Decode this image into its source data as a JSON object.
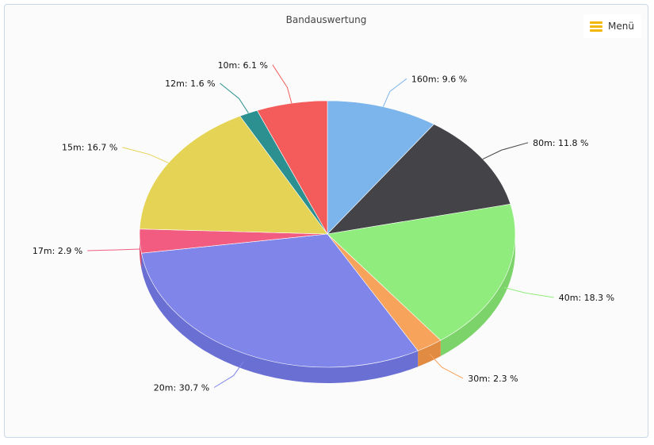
{
  "window": {
    "menu_label": "Menü",
    "menu_icon": "hamburger-icon",
    "menu_icon_color": "#f2b705"
  },
  "chart_data": {
    "type": "pie",
    "title": "Bandauswertung",
    "style": "3d",
    "unit": "%",
    "slices": [
      {
        "label": "160m",
        "value": 9.6,
        "color": "#7cb5ec",
        "side": "#6a9ac9"
      },
      {
        "label": "80m",
        "value": 11.8,
        "color": "#434348",
        "side": "#35353a"
      },
      {
        "label": "40m",
        "value": 18.3,
        "color": "#90ed7d",
        "side": "#7bd36a"
      },
      {
        "label": "30m",
        "value": 2.3,
        "color": "#f7a35c",
        "side": "#e08a42"
      },
      {
        "label": "20m",
        "value": 30.7,
        "color": "#8085e9",
        "side": "#6a6fd4"
      },
      {
        "label": "17m",
        "value": 2.9,
        "color": "#f15c80",
        "side": "#d94668"
      },
      {
        "label": "15m",
        "value": 16.7,
        "color": "#e4d354",
        "side": "#c9b943"
      },
      {
        "label": "12m",
        "value": 1.6,
        "color": "#2b908f",
        "side": "#217574"
      },
      {
        "label": "10m",
        "value": 6.1,
        "color": "#f45b5b",
        "side": "#d94646"
      }
    ]
  }
}
